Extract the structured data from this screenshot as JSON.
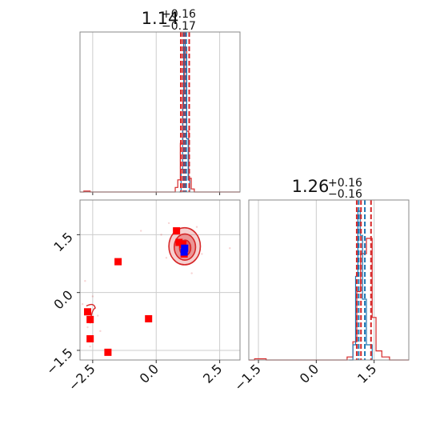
{
  "chart_data": [
    {
      "type": "histogram",
      "panel": "marginal-x",
      "title": {
        "value": "1.14",
        "sup": "+0.16",
        "sub": "−0.17"
      },
      "xlim": [
        -3.0,
        3.3
      ],
      "grid": true,
      "series": [
        {
          "name": "",
          "color": "#d62728",
          "steps": [
            [
              -3.0,
              0.0
            ],
            [
              -2.85,
              0.006
            ],
            [
              -2.6,
              0.0
            ],
            [
              0.75,
              0.03
            ],
            [
              0.85,
              0.08
            ],
            [
              0.95,
              0.32
            ],
            [
              1.05,
              0.65
            ],
            [
              1.12,
              0.95
            ],
            [
              1.2,
              0.4
            ],
            [
              1.28,
              0.09
            ],
            [
              1.38,
              0.02
            ],
            [
              1.5,
              0.0
            ],
            [
              3.3,
              0.0
            ]
          ]
        },
        {
          "name": "",
          "color": "#1f77b4",
          "steps": [
            [
              0.9,
              0.0
            ],
            [
              0.98,
              0.15
            ],
            [
              1.04,
              0.55
            ],
            [
              1.08,
              0.98
            ],
            [
              1.14,
              0.9
            ],
            [
              1.2,
              0.35
            ],
            [
              1.26,
              0.08
            ],
            [
              1.32,
              0.0
            ]
          ]
        }
      ],
      "vlines": [
        {
          "x": 0.97,
          "color": "#d62728"
        },
        {
          "x": 1.05,
          "color": "#d62728"
        },
        {
          "x": 1.1,
          "color": "#1f77b4"
        },
        {
          "x": 1.14,
          "color": "#d62728"
        },
        {
          "x": 1.18,
          "color": "#1f77b4"
        },
        {
          "x": 1.3,
          "color": "#d62728"
        }
      ]
    },
    {
      "type": "scatter",
      "panel": "joint",
      "xlim": [
        -3.0,
        3.3
      ],
      "ylim": [
        -1.75,
        2.4
      ],
      "xticks": [
        "−2.5",
        "0.0",
        "2.5"
      ],
      "yticks": [
        "−1.5",
        "0.0",
        "1.5"
      ],
      "grid": true,
      "points_red": [
        [
          -2.7,
          -0.5
        ],
        [
          -2.6,
          -0.7
        ],
        [
          -2.6,
          -1.2
        ],
        [
          -1.5,
          0.8
        ],
        [
          -1.9,
          -1.55
        ],
        [
          -0.3,
          -0.68
        ],
        [
          0.8,
          1.6
        ],
        [
          0.9,
          1.3
        ],
        [
          1.05,
          1.25
        ],
        [
          1.1,
          1.0
        ]
      ],
      "points_blue": [
        [
          1.12,
          1.15
        ],
        [
          1.1,
          1.05
        ]
      ],
      "contours": [
        {
          "cx": 1.12,
          "cy": 1.2,
          "rx": 0.62,
          "ry": 0.48,
          "fill": "rgba(214,39,40,0.22)"
        },
        {
          "cx": 1.13,
          "cy": 1.18,
          "rx": 0.42,
          "ry": 0.34,
          "fill": "rgba(214,39,40,0.35)"
        },
        {
          "cx": 1.14,
          "cy": 1.16,
          "rx": 0.22,
          "ry": 0.2,
          "fill": "rgba(214,39,40,0.5)"
        }
      ]
    },
    {
      "type": "histogram",
      "panel": "marginal-y",
      "title": {
        "value": "1.26",
        "sup": "+0.16",
        "sub": "−0.16"
      },
      "xlim": [
        -1.75,
        2.4
      ],
      "xticks": [
        "−1.5",
        "0.0",
        "1.5"
      ],
      "grid": true,
      "series": [
        {
          "name": "",
          "color": "#d62728",
          "steps": [
            [
              -1.75,
              0.0
            ],
            [
              -1.6,
              0.008
            ],
            [
              -1.3,
              0.0
            ],
            [
              0.8,
              0.02
            ],
            [
              0.95,
              0.12
            ],
            [
              1.05,
              0.45
            ],
            [
              1.15,
              0.7
            ],
            [
              1.3,
              0.8
            ],
            [
              1.45,
              0.28
            ],
            [
              1.55,
              0.06
            ],
            [
              1.7,
              0.02
            ],
            [
              1.9,
              0.0
            ],
            [
              2.4,
              0.0
            ]
          ]
        },
        {
          "name": "",
          "color": "#1f77b4",
          "steps": [
            [
              0.85,
              0.0
            ],
            [
              0.95,
              0.1
            ],
            [
              1.02,
              0.55
            ],
            [
              1.08,
              0.98
            ],
            [
              1.14,
              0.82
            ],
            [
              1.2,
              0.4
            ],
            [
              1.3,
              0.1
            ],
            [
              1.45,
              0.0
            ]
          ]
        }
      ],
      "vlines": [
        {
          "x": 1.05,
          "color": "#d62728"
        },
        {
          "x": 1.1,
          "color": "#1f77b4"
        },
        {
          "x": 1.16,
          "color": "#d62728"
        },
        {
          "x": 1.26,
          "color": "#1f77b4"
        },
        {
          "x": 1.42,
          "color": "#d62728"
        }
      ]
    }
  ]
}
